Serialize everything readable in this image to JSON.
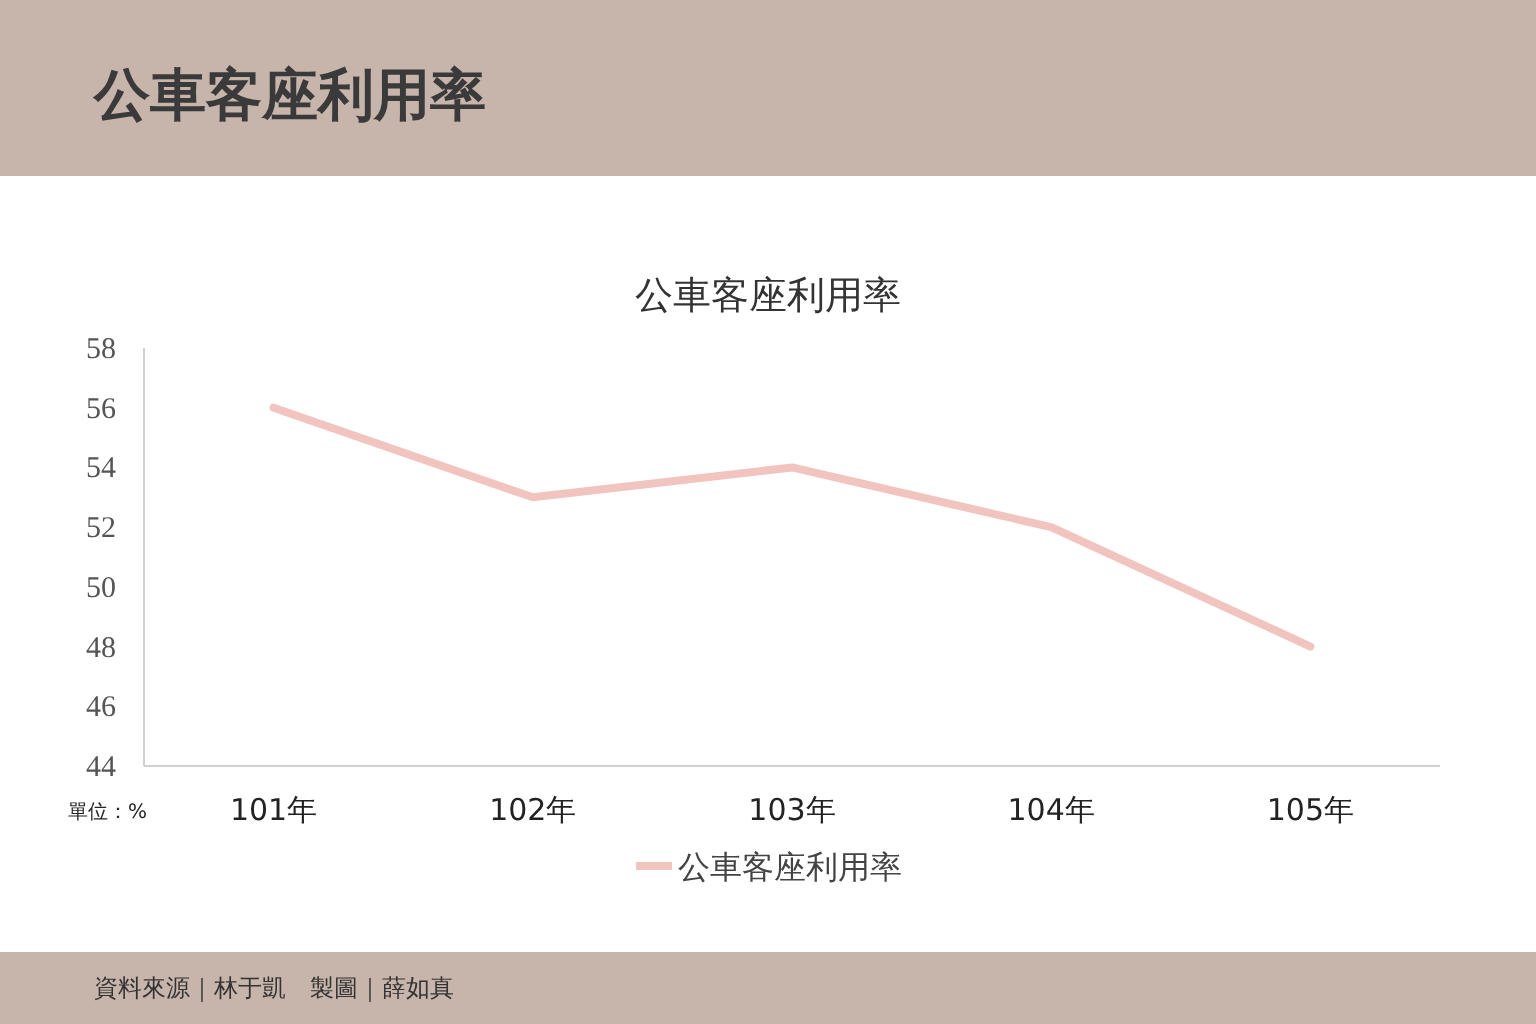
{
  "chart_data": {
    "type": "line",
    "title": "公車客座利用率",
    "subtitle": "公車客座利用率",
    "categories": [
      "101年",
      "102年",
      "103年",
      "104年",
      "105年"
    ],
    "series": [
      {
        "name": "公車客座利用率",
        "color": "#f2c4c0",
        "values": [
          56,
          53,
          54,
          52,
          48
        ]
      }
    ],
    "ylim": [
      44,
      58
    ],
    "yticks": [
      44,
      46,
      48,
      50,
      52,
      54,
      56,
      58
    ],
    "grid": false,
    "legend": "bottom",
    "marker": "none",
    "line_style": "solid",
    "annotations": [
      "單位：%",
      "資料來源｜林于凱　製圖｜薛如真"
    ]
  }
}
